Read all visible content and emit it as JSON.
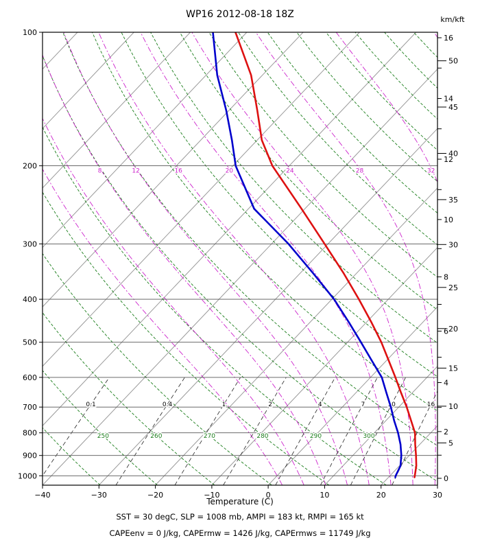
{
  "title": "WP16 2012-08-18 18Z",
  "axis": {
    "x_label": "Temperature (C)",
    "right_axis_label": "km/kft"
  },
  "footer_line1": "SST = 30 degC, SLP = 1008 mb, AMPI = 183 kt, RMPI = 165 kt",
  "footer_line2": "CAPEenv = 0 J/kg, CAPErmw = 1426 J/kg, CAPErmws = 11749 J/kg",
  "chart_data": {
    "type": "line",
    "variant": "skew-t-log-p-sounding",
    "title": "WP16 2012-08-18 18Z",
    "xlabel": "Temperature (C)",
    "temp_axis_ticks_C": [
      -40,
      -30,
      -20,
      -10,
      0,
      10,
      20,
      30
    ],
    "pressure_ticks_hPa": [
      100,
      200,
      300,
      400,
      500,
      600,
      700,
      800,
      900,
      1000
    ],
    "pressure_range_hPa": [
      100,
      1050
    ],
    "temp_range_C": [
      -40,
      30
    ],
    "series": [
      {
        "name": "temperature",
        "color": "#dd1111",
        "points_p_hPa_T_C": [
          [
            1008,
            24.6
          ],
          [
            1000,
            24.4
          ],
          [
            950,
            23.0
          ],
          [
            900,
            21.2
          ],
          [
            850,
            19.2
          ],
          [
            800,
            17.2
          ],
          [
            750,
            14.4
          ],
          [
            700,
            11.4
          ],
          [
            650,
            8.0
          ],
          [
            600,
            4.4
          ],
          [
            550,
            0.4
          ],
          [
            500,
            -4.0
          ],
          [
            450,
            -9.2
          ],
          [
            400,
            -15.2
          ],
          [
            350,
            -22.2
          ],
          [
            300,
            -30.6
          ],
          [
            250,
            -40.6
          ],
          [
            200,
            -53.0
          ],
          [
            175,
            -59.2
          ],
          [
            150,
            -65.0
          ],
          [
            125,
            -72.0
          ],
          [
            100,
            -82.0
          ]
        ]
      },
      {
        "name": "dewpoint",
        "color": "#0000cc",
        "points_p_hPa_T_C": [
          [
            1008,
            21.2
          ],
          [
            1000,
            21.0
          ],
          [
            950,
            20.2
          ],
          [
            900,
            18.6
          ],
          [
            850,
            16.6
          ],
          [
            800,
            14.2
          ],
          [
            750,
            11.4
          ],
          [
            700,
            8.6
          ],
          [
            650,
            5.4
          ],
          [
            600,
            2.0
          ],
          [
            550,
            -2.6
          ],
          [
            500,
            -7.6
          ],
          [
            450,
            -13.2
          ],
          [
            400,
            -19.6
          ],
          [
            350,
            -27.6
          ],
          [
            300,
            -37.0
          ],
          [
            250,
            -49.0
          ],
          [
            200,
            -59.5
          ],
          [
            175,
            -64.5
          ],
          [
            150,
            -70.5
          ],
          [
            125,
            -78.0
          ],
          [
            100,
            -86.0
          ]
        ]
      }
    ],
    "gridlines": {
      "isobars_hPa": [
        100,
        200,
        300,
        400,
        500,
        600,
        700,
        800,
        900,
        1000
      ],
      "isobar_color": "#555555",
      "isotherms_C": {
        "min": -130,
        "max": 40,
        "step": 10,
        "color": "#9a9a9a"
      },
      "dry_adiabats_theta_K": {
        "min": 230,
        "max": 450,
        "step": 10,
        "labeled": [
          250,
          260,
          270,
          280,
          290,
          300
        ],
        "label_pressure_hPa": 812,
        "color": "#1a7d1a"
      },
      "moist_adiabats_thetaw_C": {
        "values": [
          0,
          4,
          8,
          12,
          16,
          20,
          24,
          28,
          32,
          36
        ],
        "labeled": [
          8,
          12,
          16,
          20,
          24,
          28,
          32
        ],
        "label_pressure_hPa": 205,
        "color": "#cc22cc"
      },
      "mixing_ratio_g_per_kg": {
        "values": [
          0.1,
          0.4,
          1,
          2,
          4,
          7,
          10,
          16
        ],
        "labeled": [
          0.1,
          0.4,
          1,
          2,
          4,
          7,
          10,
          16
        ],
        "label_pressure_hPa": 690,
        "top_pressure_hPa": 600,
        "color": "#222222"
      }
    },
    "height_scale": {
      "label": "km/kft",
      "km_ticks": [
        0,
        1,
        2,
        3,
        4,
        5,
        6,
        7,
        8,
        9,
        10,
        11,
        12,
        13,
        14,
        15,
        16
      ],
      "km_labeled": [
        0,
        2,
        4,
        6,
        8,
        10,
        12,
        14,
        16
      ],
      "kft_ticks": [
        5,
        10,
        15,
        20,
        25,
        30,
        35,
        40,
        45,
        50
      ],
      "kft_labeled": [
        5,
        10,
        15,
        20,
        25,
        30,
        35,
        40,
        45,
        50
      ]
    }
  }
}
